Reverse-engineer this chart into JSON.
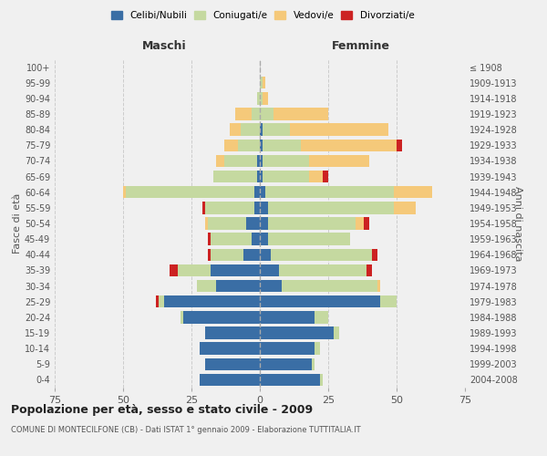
{
  "age_groups": [
    "0-4",
    "5-9",
    "10-14",
    "15-19",
    "20-24",
    "25-29",
    "30-34",
    "35-39",
    "40-44",
    "45-49",
    "50-54",
    "55-59",
    "60-64",
    "65-69",
    "70-74",
    "75-79",
    "80-84",
    "85-89",
    "90-94",
    "95-99",
    "100+"
  ],
  "birth_years": [
    "2004-2008",
    "1999-2003",
    "1994-1998",
    "1989-1993",
    "1984-1988",
    "1979-1983",
    "1974-1978",
    "1969-1973",
    "1964-1968",
    "1959-1963",
    "1954-1958",
    "1949-1953",
    "1944-1948",
    "1939-1943",
    "1934-1938",
    "1929-1933",
    "1924-1928",
    "1919-1923",
    "1914-1918",
    "1909-1913",
    "≤ 1908"
  ],
  "male": {
    "celibi": [
      22,
      20,
      22,
      20,
      28,
      35,
      16,
      18,
      6,
      3,
      5,
      2,
      2,
      1,
      1,
      0,
      0,
      0,
      0,
      0,
      0
    ],
    "coniugati": [
      0,
      0,
      0,
      0,
      1,
      2,
      7,
      12,
      12,
      15,
      14,
      18,
      47,
      16,
      12,
      8,
      7,
      3,
      1,
      0,
      0
    ],
    "vedovi": [
      0,
      0,
      0,
      0,
      0,
      0,
      0,
      0,
      0,
      0,
      1,
      0,
      1,
      0,
      3,
      5,
      4,
      6,
      0,
      0,
      0
    ],
    "divorziati": [
      0,
      0,
      0,
      0,
      0,
      1,
      0,
      3,
      1,
      1,
      0,
      1,
      0,
      0,
      0,
      0,
      0,
      0,
      0,
      0,
      0
    ]
  },
  "female": {
    "nubili": [
      22,
      19,
      20,
      27,
      20,
      44,
      8,
      7,
      4,
      3,
      3,
      3,
      2,
      1,
      1,
      1,
      1,
      0,
      0,
      0,
      0
    ],
    "coniugate": [
      1,
      1,
      2,
      2,
      5,
      6,
      35,
      32,
      37,
      30,
      32,
      46,
      47,
      17,
      17,
      14,
      10,
      5,
      1,
      1,
      0
    ],
    "vedove": [
      0,
      0,
      0,
      0,
      0,
      0,
      1,
      0,
      0,
      0,
      3,
      8,
      14,
      5,
      22,
      35,
      36,
      20,
      2,
      1,
      0
    ],
    "divorziate": [
      0,
      0,
      0,
      0,
      0,
      0,
      0,
      2,
      2,
      0,
      2,
      0,
      0,
      2,
      0,
      2,
      0,
      0,
      0,
      0,
      0
    ]
  },
  "colors": {
    "celibi_nubili": "#3a6ea5",
    "coniugati": "#c5d9a0",
    "vedovi": "#f5c97a",
    "divorziati": "#cc2222"
  },
  "title": "Popolazione per età, sesso e stato civile - 2009",
  "subtitle": "COMUNE DI MONTECILFONE (CB) - Dati ISTAT 1° gennaio 2009 - Elaborazione TUTTITALIA.IT",
  "xlabel_left": "Maschi",
  "xlabel_right": "Femmine",
  "ylabel_left": "Fasce di età",
  "ylabel_right": "Anni di nascita",
  "xlim": 75,
  "bg_color": "#f0f0f0",
  "grid_color": "#cccccc"
}
